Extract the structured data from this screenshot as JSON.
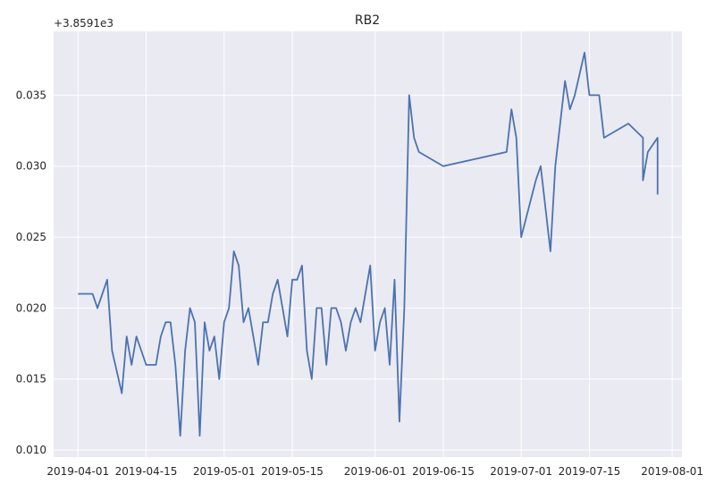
{
  "chart_data": {
    "type": "line",
    "title": "RB2",
    "y_offset_label": "+3.8591e3",
    "xlabel": "",
    "ylabel": "",
    "xlim": [
      "2019-03-27",
      "2019-08-03"
    ],
    "ylim": [
      0.0095,
      0.0395
    ],
    "grid": true,
    "x_ticks": [
      "2019-04-01",
      "2019-04-15",
      "2019-05-01",
      "2019-05-15",
      "2019-06-01",
      "2019-06-15",
      "2019-07-01",
      "2019-07-15",
      "2019-08-01"
    ],
    "y_ticks": [
      "0.010",
      "0.015",
      "0.020",
      "0.025",
      "0.030",
      "0.035"
    ],
    "colors": {
      "background": "#eaeaf2",
      "grid": "#ffffff",
      "series": "#4c72b0"
    },
    "series": [
      {
        "x": [
          "2019-04-01",
          "2019-04-04",
          "2019-04-05",
          "2019-04-06",
          "2019-04-07",
          "2019-04-08",
          "2019-04-10",
          "2019-04-11",
          "2019-04-12",
          "2019-04-13",
          "2019-04-14",
          "2019-04-15",
          "2019-04-17",
          "2019-04-18",
          "2019-04-19",
          "2019-04-20",
          "2019-04-21",
          "2019-04-22",
          "2019-04-23",
          "2019-04-24",
          "2019-04-25",
          "2019-04-26",
          "2019-04-27",
          "2019-04-28",
          "2019-04-29",
          "2019-04-30",
          "2019-05-01",
          "2019-05-02",
          "2019-05-03",
          "2019-05-04",
          "2019-05-05",
          "2019-05-06",
          "2019-05-07",
          "2019-05-08",
          "2019-05-09",
          "2019-05-10",
          "2019-05-11",
          "2019-05-12",
          "2019-05-13",
          "2019-05-14",
          "2019-05-15",
          "2019-05-16",
          "2019-05-17",
          "2019-05-18",
          "2019-05-19",
          "2019-05-20",
          "2019-05-21",
          "2019-05-22",
          "2019-05-23",
          "2019-05-24",
          "2019-05-25",
          "2019-05-26",
          "2019-05-27",
          "2019-05-28",
          "2019-05-29",
          "2019-05-31",
          "2019-06-01",
          "2019-06-02",
          "2019-06-03",
          "2019-06-04",
          "2019-06-05",
          "2019-06-06",
          "2019-06-07",
          "2019-06-08",
          "2019-06-09",
          "2019-06-10",
          "2019-06-15",
          "2019-06-28",
          "2019-06-29",
          "2019-06-30",
          "2019-07-01",
          "2019-07-04",
          "2019-07-05",
          "2019-07-07",
          "2019-07-08",
          "2019-07-10",
          "2019-07-11",
          "2019-07-12",
          "2019-07-14",
          "2019-07-15",
          "2019-07-17",
          "2019-07-18",
          "2019-07-23",
          "2019-07-26",
          "2019-07-26",
          "2019-07-27",
          "2019-07-29",
          "2019-07-29"
        ],
        "values": [
          0.021,
          0.021,
          0.02,
          0.021,
          0.022,
          0.017,
          0.014,
          0.018,
          0.016,
          0.018,
          0.017,
          0.016,
          0.016,
          0.018,
          0.019,
          0.019,
          0.016,
          0.011,
          0.017,
          0.02,
          0.019,
          0.011,
          0.019,
          0.017,
          0.018,
          0.015,
          0.019,
          0.02,
          0.024,
          0.023,
          0.019,
          0.02,
          0.018,
          0.016,
          0.019,
          0.019,
          0.021,
          0.022,
          0.02,
          0.018,
          0.022,
          0.022,
          0.023,
          0.017,
          0.015,
          0.02,
          0.02,
          0.016,
          0.02,
          0.02,
          0.019,
          0.017,
          0.019,
          0.02,
          0.019,
          0.023,
          0.017,
          0.019,
          0.02,
          0.016,
          0.022,
          0.012,
          0.02,
          0.035,
          0.032,
          0.031,
          0.03,
          0.031,
          0.034,
          0.032,
          0.025,
          0.029,
          0.03,
          0.024,
          0.03,
          0.036,
          0.034,
          0.035,
          0.038,
          0.035,
          0.035,
          0.032,
          0.033,
          0.032,
          0.029,
          0.031,
          0.032,
          0.028
        ]
      }
    ]
  }
}
